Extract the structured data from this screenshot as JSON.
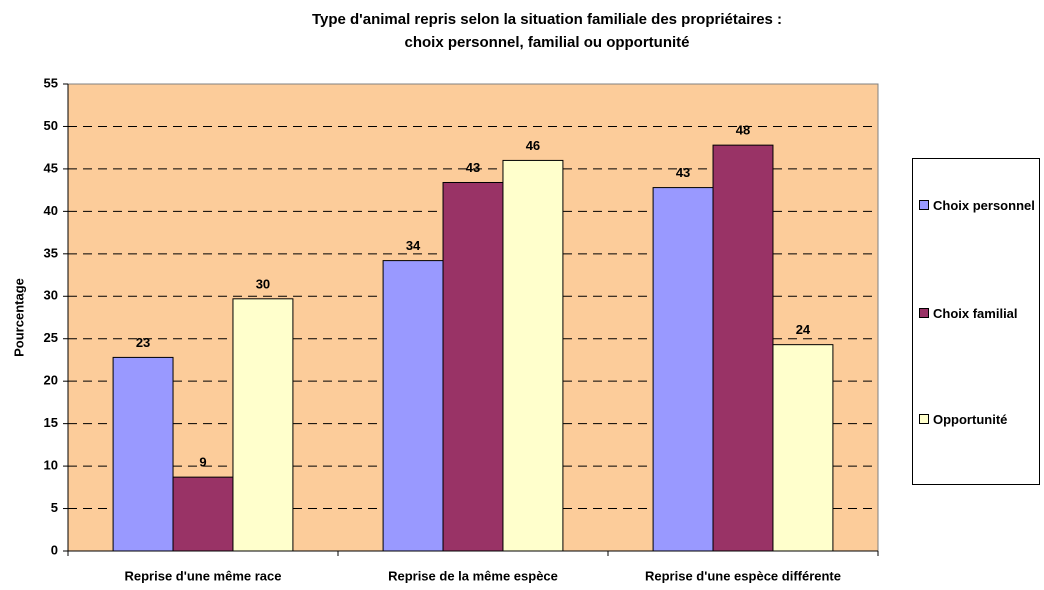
{
  "chart_data": {
    "type": "bar",
    "title": "Type d'animal repris selon la situation familiale des propriétaires :\nchoix personnel, familial ou opportunité",
    "y_label": "Pourcentage",
    "categories": [
      "Reprise d'une même race",
      "Reprise de la même espèce",
      "Reprise d'une espèce différente"
    ],
    "series": [
      {
        "name": "Choix personnel",
        "color": "#9999ff",
        "values": [
          22.8,
          34.2,
          42.8
        ],
        "value_labels": [
          "23",
          "34",
          "43"
        ]
      },
      {
        "name": "Choix familial",
        "color": "#993366",
        "values": [
          8.7,
          43.4,
          47.8
        ],
        "value_labels": [
          "9",
          "43",
          "48"
        ]
      },
      {
        "name": "Opportunité",
        "color": "#ffffcc",
        "values": [
          29.7,
          46,
          24.3
        ],
        "value_labels": [
          "30",
          "46",
          "24"
        ]
      }
    ],
    "ylim": [
      0,
      55
    ],
    "yticks": [
      0,
      5,
      10,
      15,
      20,
      25,
      30,
      35,
      40,
      45,
      50,
      55
    ],
    "grid": true,
    "legend": "right"
  }
}
